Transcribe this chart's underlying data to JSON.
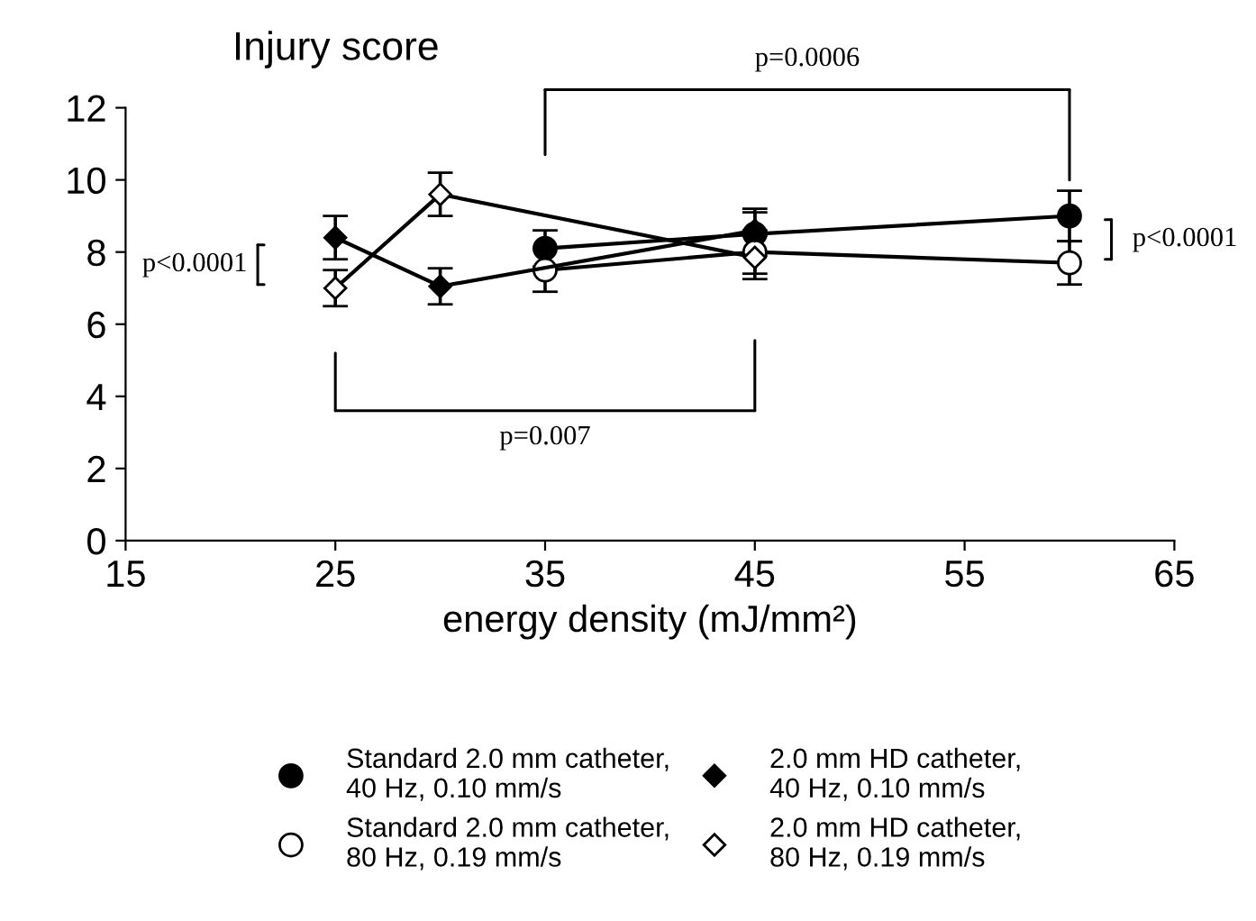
{
  "chart_data": {
    "type": "line",
    "title": "Injury score",
    "xlabel": "energy density (mJ/mm²)",
    "xlim": [
      15,
      65
    ],
    "xticks": [
      15,
      25,
      35,
      45,
      55,
      65
    ],
    "ylim": [
      0,
      12
    ],
    "yticks": [
      0,
      2,
      4,
      6,
      8,
      10,
      12
    ],
    "grid": false,
    "legend": "bottom",
    "line_style": "solid",
    "series": [
      {
        "name": "Standard 2.0 mm catheter,\n40 Hz, 0.10 mm/s",
        "color": "#000000",
        "marker": "circle",
        "x": [
          35,
          45,
          60
        ],
        "values": [
          8.1,
          8.5,
          9.0
        ],
        "errors": [
          0.5,
          0.6,
          0.7
        ]
      },
      {
        "name": "Standard 2.0 mm catheter,\n80 Hz, 0.19 mm/s",
        "color": "#000000",
        "marker": "circle",
        "x": [
          35,
          45,
          60
        ],
        "values": [
          7.5,
          8.0,
          7.7
        ],
        "errors": [
          0.6,
          0.6,
          0.6
        ]
      },
      {
        "name": "2.0 mm HD catheter,\n40 Hz, 0.10 mm/s",
        "color": "#000000",
        "marker": "diamond",
        "x": [
          25,
          30,
          45
        ],
        "values": [
          8.4,
          7.05,
          8.6
        ],
        "errors": [
          0.6,
          0.5,
          0.6
        ]
      },
      {
        "name": "2.0 mm HD catheter,\n80 Hz, 0.19 mm/s",
        "color": "#000000",
        "marker": "diamond",
        "x": [
          25,
          30,
          45
        ],
        "values": [
          7.0,
          9.6,
          7.85
        ],
        "errors": [
          0.5,
          0.6,
          0.6
        ]
      }
    ],
    "annotations": [
      "p=0.0006",
      "p=0.007",
      "p<0.0001",
      "p<0.0001"
    ]
  }
}
